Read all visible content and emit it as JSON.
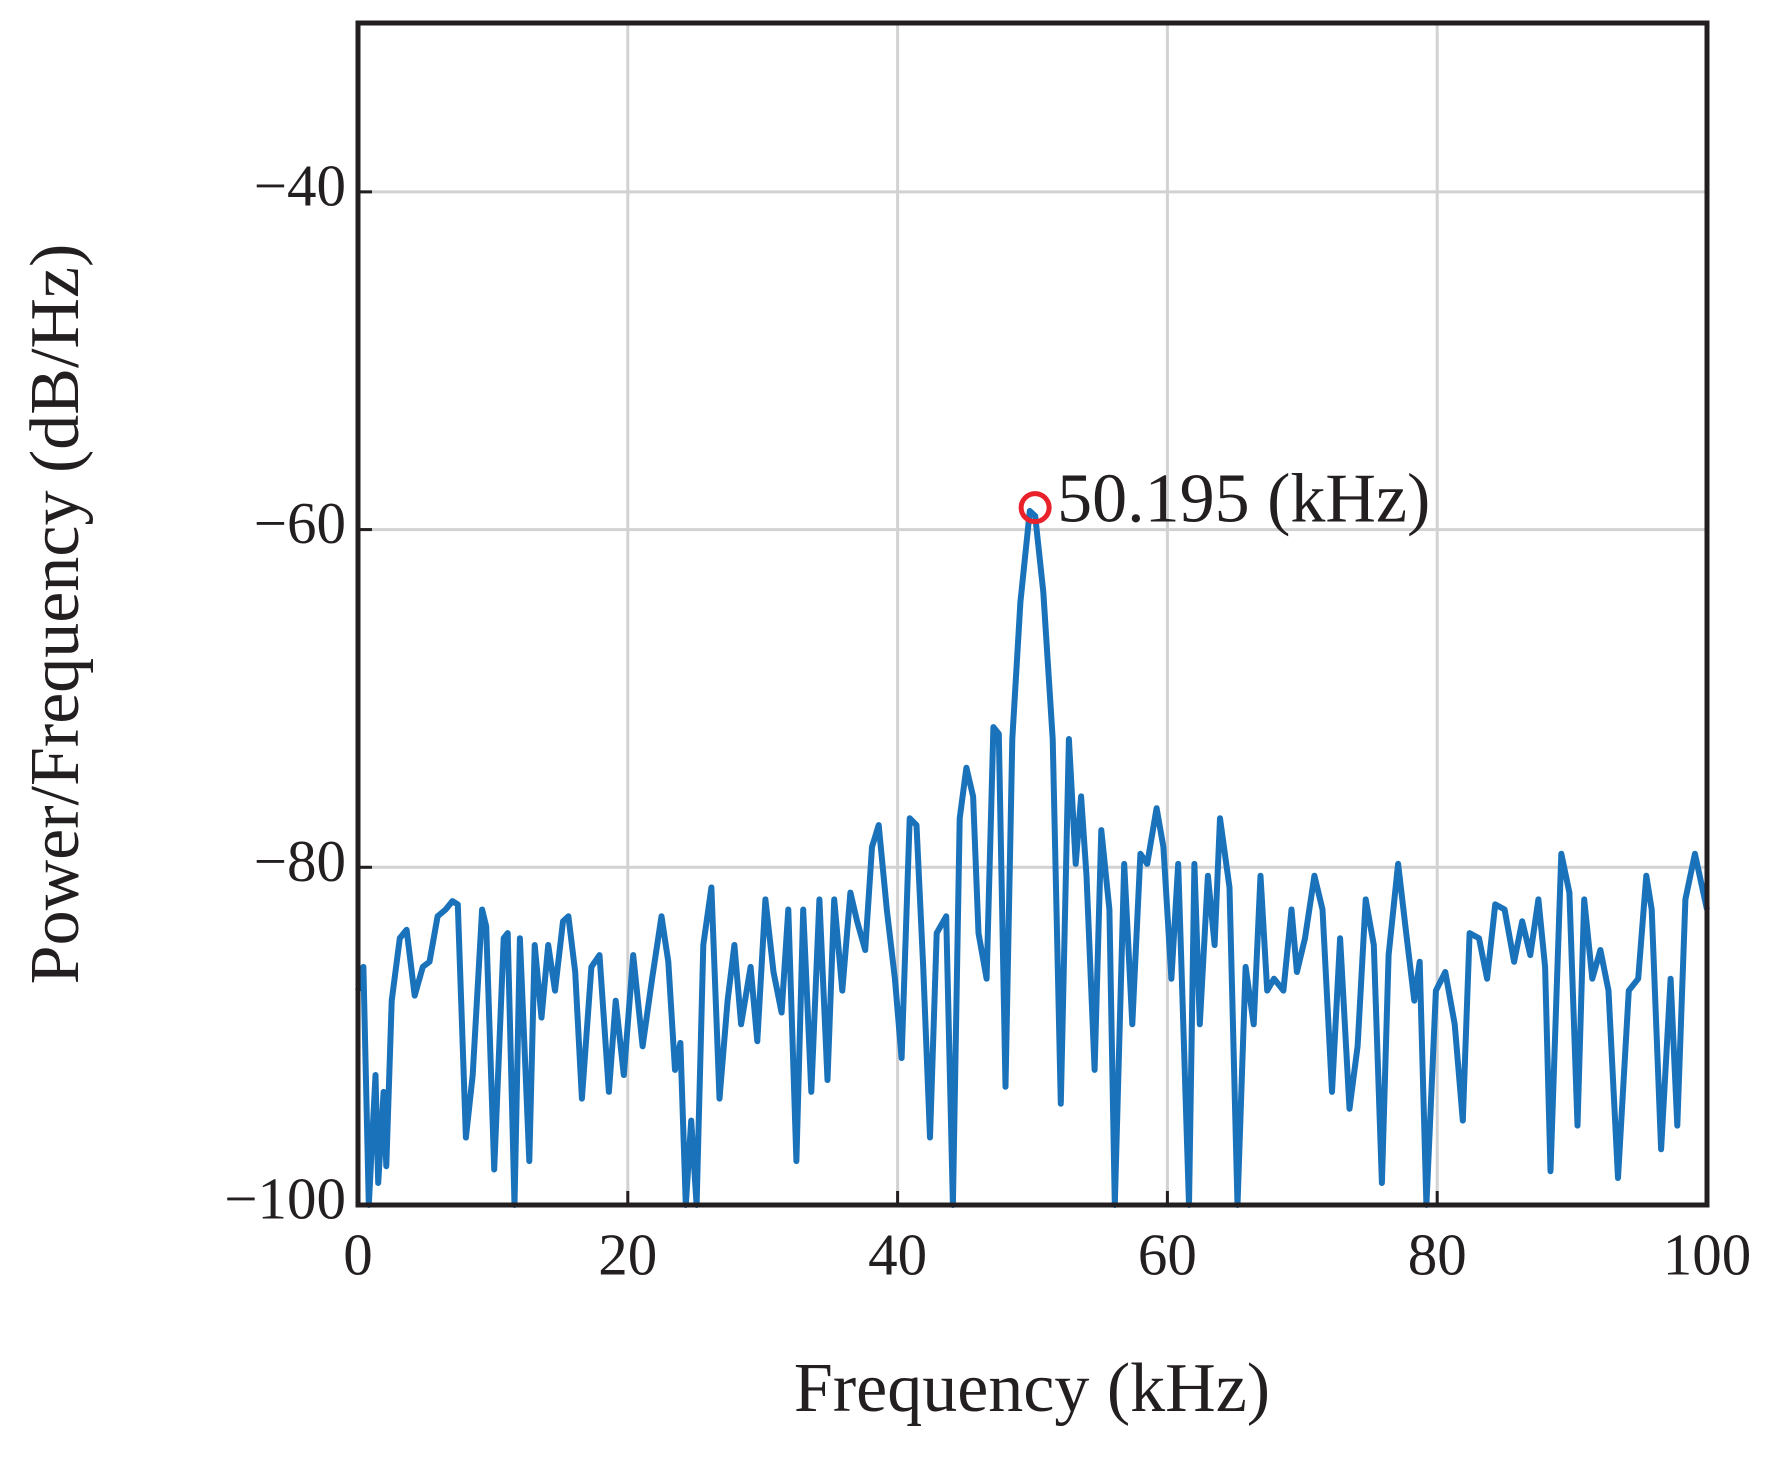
{
  "chart_data": {
    "type": "line",
    "xlabel": "Frequency (kHz)",
    "ylabel": "Power/Frequency (dB/Hz)",
    "xlim": [
      0,
      100
    ],
    "xticks": [
      0,
      20,
      40,
      60,
      80,
      100
    ],
    "ylim": [
      -100,
      -30
    ],
    "yticks": [
      {
        "value": -100,
        "label": "−100"
      },
      {
        "value": -80,
        "label": "−80"
      },
      {
        "value": -60,
        "label": "−60"
      },
      {
        "value": -40,
        "label": "−40"
      }
    ],
    "grid": true,
    "x": [
      0,
      0.4,
      0.8,
      1.3,
      1.5,
      1.9,
      2.1,
      2.5,
      3.1,
      3.6,
      4.2,
      4.8,
      5.3,
      5.9,
      6.5,
      7.0,
      7.4,
      8.0,
      8.5,
      9.2,
      9.5,
      10.1,
      10.8,
      11.1,
      11.6,
      12.0,
      12.7,
      13.1,
      13.6,
      14.1,
      14.6,
      15.2,
      15.6,
      16.1,
      16.6,
      17.3,
      17.9,
      18.6,
      19.1,
      19.7,
      20.4,
      21.1,
      21.8,
      22.5,
      23.0,
      23.5,
      23.9,
      24.3,
      24.7,
      25.1,
      25.6,
      26.2,
      26.8,
      27.4,
      27.9,
      28.4,
      29.1,
      29.6,
      30.2,
      30.8,
      31.4,
      31.9,
      32.5,
      33.0,
      33.6,
      34.2,
      34.8,
      35.3,
      35.9,
      36.5,
      37.0,
      37.6,
      38.1,
      38.6,
      39.2,
      39.8,
      40.3,
      40.9,
      41.4,
      41.9,
      42.4,
      42.9,
      43.6,
      44.1,
      44.6,
      45.1,
      45.6,
      46.0,
      46.6,
      47.1,
      47.5,
      48.0,
      48.5,
      49.1,
      49.8,
      50.2,
      50.8,
      51.5,
      52.1,
      52.7,
      53.2,
      53.6,
      54.0,
      54.6,
      55.1,
      55.7,
      56.1,
      56.8,
      57.4,
      58.0,
      58.5,
      59.2,
      59.7,
      60.3,
      60.8,
      61.6,
      62.0,
      62.4,
      63.0,
      63.5,
      63.9,
      64.6,
      65.2,
      65.8,
      66.4,
      66.9,
      67.4,
      67.9,
      68.6,
      69.2,
      69.6,
      70.2,
      70.9,
      71.5,
      72.2,
      72.8,
      73.5,
      74.1,
      74.7,
      75.3,
      75.9,
      76.4,
      77.1,
      77.7,
      78.3,
      78.7,
      79.2,
      79.9,
      80.6,
      81.3,
      81.9,
      82.4,
      83.1,
      83.7,
      84.3,
      85.0,
      85.7,
      86.3,
      86.9,
      87.5,
      88.0,
      88.4,
      89.2,
      89.8,
      90.4,
      90.9,
      91.5,
      92.1,
      92.7,
      93.4,
      94.2,
      94.9,
      95.5,
      95.9,
      96.6,
      97.3,
      97.8,
      98.4,
      99.1,
      100
    ],
    "series": [
      {
        "color": "#1a72bb",
        "values": [
          -87.3,
          -85.9,
          -100,
          -92.3,
          -98.7,
          -93.3,
          -97.7,
          -87.9,
          -84.2,
          -83.7,
          -87.6,
          -85.9,
          -85.6,
          -82.9,
          -82.5,
          -82.0,
          -82.2,
          -96.0,
          -92.3,
          -82.5,
          -83.5,
          -97.9,
          -84.2,
          -83.9,
          -100,
          -84.2,
          -97.4,
          -84.6,
          -88.9,
          -84.6,
          -87.3,
          -83.2,
          -82.9,
          -86.2,
          -93.7,
          -85.9,
          -85.2,
          -93.3,
          -87.9,
          -92.3,
          -85.2,
          -90.6,
          -86.6,
          -82.9,
          -85.6,
          -92.0,
          -90.4,
          -100,
          -95.0,
          -100,
          -84.6,
          -81.2,
          -93.7,
          -87.9,
          -84.6,
          -89.3,
          -85.9,
          -90.3,
          -81.9,
          -86.2,
          -88.6,
          -82.5,
          -97.4,
          -82.5,
          -93.3,
          -81.9,
          -92.6,
          -81.9,
          -87.3,
          -81.5,
          -83.2,
          -84.9,
          -78.8,
          -77.5,
          -82.5,
          -86.6,
          -91.3,
          -77.1,
          -77.5,
          -85.9,
          -96.0,
          -83.9,
          -82.9,
          -100,
          -77.1,
          -74.1,
          -75.8,
          -83.9,
          -86.6,
          -71.7,
          -72.1,
          -93.0,
          -72.4,
          -64.3,
          -58.9,
          -59.2,
          -63.7,
          -72.4,
          -94.0,
          -72.4,
          -79.8,
          -75.8,
          -80.5,
          -92.0,
          -77.8,
          -82.5,
          -100,
          -79.8,
          -89.3,
          -79.2,
          -79.8,
          -76.5,
          -78.8,
          -86.6,
          -79.8,
          -100,
          -79.8,
          -89.3,
          -80.5,
          -84.6,
          -77.1,
          -81.2,
          -100,
          -85.9,
          -89.3,
          -80.5,
          -87.3,
          -86.6,
          -87.3,
          -82.5,
          -86.2,
          -84.2,
          -80.5,
          -82.5,
          -93.3,
          -84.2,
          -94.3,
          -90.6,
          -81.9,
          -84.6,
          -98.7,
          -85.2,
          -79.8,
          -83.9,
          -87.9,
          -85.6,
          -100,
          -87.3,
          -86.2,
          -89.3,
          -95.0,
          -83.9,
          -84.2,
          -86.6,
          -82.2,
          -82.5,
          -85.6,
          -83.2,
          -85.2,
          -81.9,
          -85.9,
          -98.0,
          -79.2,
          -81.5,
          -95.3,
          -81.9,
          -86.6,
          -84.9,
          -87.3,
          -98.4,
          -87.3,
          -86.6,
          -80.5,
          -82.5,
          -96.7,
          -86.6,
          -95.3,
          -81.9,
          -79.2,
          -82.5
        ]
      }
    ],
    "peak": {
      "x": 50.195,
      "y": -58.7,
      "label": "50.195 (kHz)",
      "color": "#e8212a"
    }
  }
}
